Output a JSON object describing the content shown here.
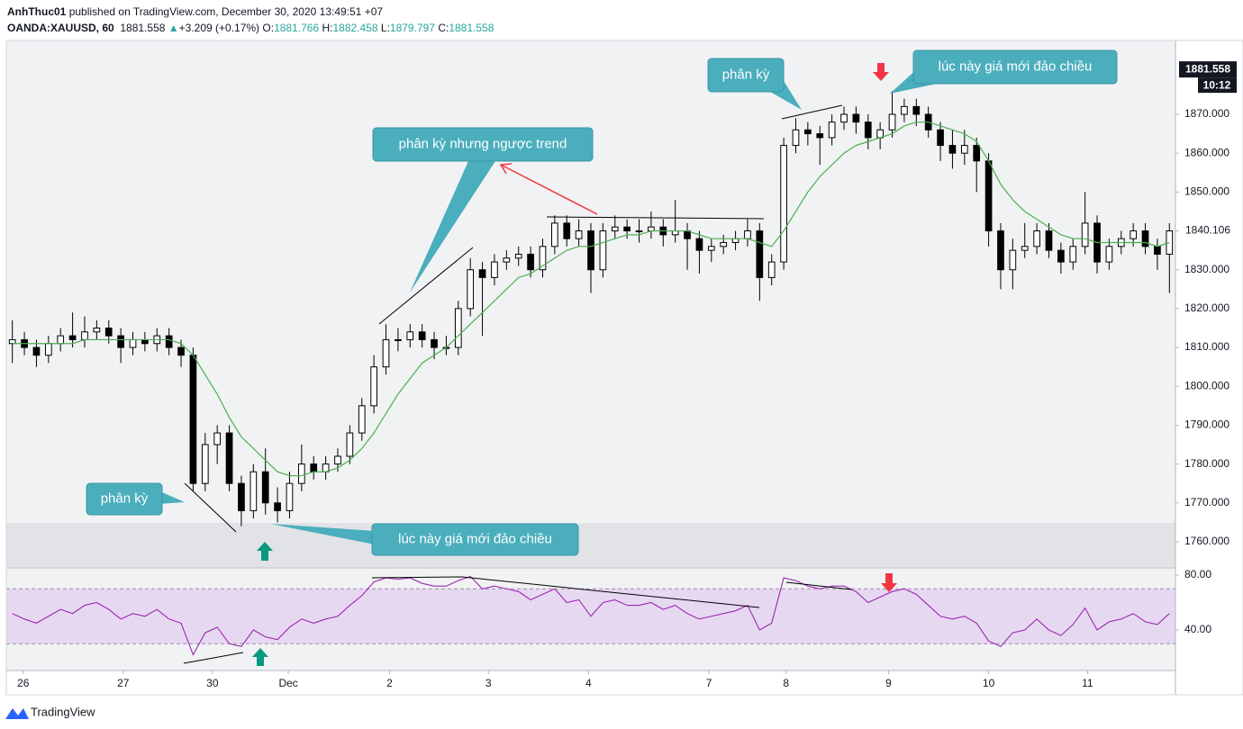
{
  "header": {
    "author": "AnhThuc01",
    "published": "published on TradingView.com, December 30, 2020 13:49:51 +07",
    "symbol": "OANDA:XAUUSD, 60",
    "price": "1881.558",
    "arrow": "▲",
    "change": "+3.209 (+0.17%)",
    "ohlc": [
      {
        "label": "O:",
        "value": "1881.766"
      },
      {
        "label": "H:",
        "value": "1882.458"
      },
      {
        "label": "L:",
        "value": "1879.797"
      },
      {
        "label": "C:",
        "value": "1881.558"
      }
    ]
  },
  "footer": {
    "brand": "TradingView"
  },
  "chart_data": [
    {
      "type": "candlestick",
      "up_color": "#ffffff",
      "down_color": "#000000",
      "wick_color": "#000000",
      "ma_color": "#4caf50",
      "xlim": [
        -0.5,
        96.5
      ],
      "xticks": [
        {
          "value": 0.9,
          "label": "26"
        },
        {
          "value": 9.2,
          "label": "27"
        },
        {
          "value": 16.6,
          "label": "30"
        },
        {
          "value": 22.9,
          "label": "Dec"
        },
        {
          "value": 31.3,
          "label": "2"
        },
        {
          "value": 39.5,
          "label": "3"
        },
        {
          "value": 47.8,
          "label": "4"
        },
        {
          "value": 57.8,
          "label": "7"
        },
        {
          "value": 64.2,
          "label": "8"
        },
        {
          "value": 72.7,
          "label": "9"
        },
        {
          "value": 81,
          "label": "10"
        },
        {
          "value": 89.2,
          "label": "11"
        }
      ],
      "ylim": [
        1753.5,
        1889
      ],
      "yticks": [
        {
          "value": 1760,
          "label": "1760.000"
        },
        {
          "value": 1770,
          "label": "1770.000"
        },
        {
          "value": 1780,
          "label": "1780.000"
        },
        {
          "value": 1790,
          "label": "1790.000"
        },
        {
          "value": 1800,
          "label": "1800.000"
        },
        {
          "value": 1810,
          "label": "1810.000"
        },
        {
          "value": 1820,
          "label": "1820.000"
        },
        {
          "value": 1830,
          "label": "1830.000"
        },
        {
          "value": 1840,
          "label": "1840.000"
        },
        {
          "value": 1850,
          "label": "1850.000"
        },
        {
          "value": 1860,
          "label": "1860.000"
        },
        {
          "value": 1870,
          "label": "1870.000"
        }
      ],
      "open": [
        1811,
        1812,
        1810,
        1808,
        1811,
        1813,
        1812,
        1814,
        1815,
        1813,
        1810,
        1812,
        1811,
        1813,
        1810,
        1808,
        1775,
        1785,
        1788,
        1775,
        1768,
        1778,
        1770,
        1768,
        1775,
        1780,
        1778,
        1780,
        1782,
        1788,
        1795,
        1805,
        1812,
        1812,
        1814,
        1812,
        1810,
        1810,
        1820,
        1830,
        1828,
        1832,
        1833,
        1834,
        1830,
        1836,
        1842,
        1838,
        1840,
        1830,
        1840,
        1841,
        1840,
        1840,
        1841,
        1839,
        1840,
        1838,
        1835,
        1836,
        1837,
        1838,
        1840,
        1828,
        1832,
        1862,
        1866,
        1865,
        1864,
        1868,
        1870,
        1868,
        1864,
        1866,
        1870,
        1872,
        1870,
        1866,
        1862,
        1860,
        1862,
        1858,
        1840,
        1830,
        1835,
        1836,
        1840,
        1835,
        1832,
        1836,
        1842,
        1832,
        1836,
        1838,
        1840,
        1836,
        1834
      ],
      "high": [
        1817,
        1814,
        1812,
        1813,
        1815,
        1819,
        1818,
        1817,
        1817,
        1815,
        1814,
        1814,
        1815,
        1815,
        1812,
        1810,
        1788,
        1790,
        1790,
        1777,
        1780,
        1784,
        1774,
        1778,
        1785,
        1782,
        1782,
        1784,
        1790,
        1797,
        1808,
        1816,
        1815,
        1816,
        1816,
        1814,
        1813,
        1822,
        1833,
        1832,
        1834,
        1835,
        1836,
        1836,
        1838,
        1844,
        1844,
        1843,
        1842,
        1842,
        1844,
        1843,
        1843,
        1845,
        1843,
        1848,
        1842,
        1840,
        1838,
        1839,
        1840,
        1843,
        1842,
        1834,
        1864,
        1869,
        1868,
        1867,
        1870,
        1872,
        1872,
        1870,
        1868,
        1876,
        1874,
        1874,
        1872,
        1868,
        1866,
        1866,
        1864,
        1860,
        1842,
        1838,
        1842,
        1842,
        1842,
        1837,
        1838,
        1850,
        1844,
        1838,
        1840,
        1842,
        1842,
        1838,
        1842
      ],
      "low": [
        1806,
        1808,
        1805,
        1806,
        1809,
        1810,
        1810,
        1812,
        1811,
        1806,
        1808,
        1809,
        1809,
        1808,
        1805,
        1773,
        1773,
        1780,
        1773,
        1764,
        1766,
        1767,
        1765,
        1766,
        1773,
        1776,
        1776,
        1778,
        1780,
        1786,
        1793,
        1803,
        1809,
        1810,
        1810,
        1807,
        1808,
        1808,
        1818,
        1813,
        1826,
        1830,
        1831,
        1828,
        1828,
        1834,
        1836,
        1836,
        1824,
        1828,
        1838,
        1838,
        1837,
        1838,
        1836,
        1837,
        1830,
        1829,
        1832,
        1834,
        1835,
        1836,
        1822,
        1826,
        1830,
        1860,
        1862,
        1857,
        1862,
        1866,
        1865,
        1861,
        1861,
        1864,
        1868,
        1867,
        1864,
        1858,
        1856,
        1857,
        1850,
        1836,
        1825,
        1825,
        1833,
        1834,
        1833,
        1829,
        1830,
        1834,
        1829,
        1830,
        1834,
        1836,
        1834,
        1830,
        1824
      ],
      "close": [
        1812,
        1810,
        1808,
        1811,
        1813,
        1812,
        1814,
        1815,
        1813,
        1810,
        1812,
        1811,
        1813,
        1810,
        1808,
        1775,
        1785,
        1788,
        1775,
        1768,
        1778,
        1770,
        1768,
        1775,
        1780,
        1778,
        1780,
        1782,
        1788,
        1795,
        1805,
        1812,
        1812,
        1814,
        1812,
        1810,
        1810,
        1820,
        1830,
        1828,
        1832,
        1833,
        1834,
        1830,
        1836,
        1842,
        1838,
        1840,
        1830,
        1840,
        1841,
        1840,
        1840,
        1841,
        1839,
        1840,
        1838,
        1835,
        1836,
        1837,
        1838,
        1840,
        1828,
        1832,
        1862,
        1866,
        1865,
        1864,
        1868,
        1870,
        1868,
        1864,
        1866,
        1870,
        1872,
        1870,
        1866,
        1862,
        1860,
        1862,
        1858,
        1840,
        1830,
        1835,
        1836,
        1840,
        1835,
        1832,
        1836,
        1842,
        1832,
        1836,
        1838,
        1840,
        1836,
        1834,
        1840
      ],
      "ma": [
        1811,
        1811,
        1811,
        1811,
        1811,
        1811,
        1812,
        1812,
        1812,
        1812,
        1812,
        1812,
        1812,
        1812,
        1811,
        1808,
        1803,
        1798,
        1792,
        1787,
        1784,
        1781,
        1778,
        1777,
        1777,
        1778,
        1778,
        1779,
        1781,
        1784,
        1788,
        1793,
        1798,
        1802,
        1806,
        1808,
        1810,
        1813,
        1816,
        1819,
        1822,
        1825,
        1828,
        1829,
        1831,
        1833,
        1835,
        1836,
        1836,
        1837,
        1838,
        1839,
        1839,
        1840,
        1840,
        1840,
        1840,
        1839,
        1838,
        1838,
        1838,
        1838,
        1837,
        1836,
        1840,
        1845,
        1850,
        1854,
        1857,
        1860,
        1862,
        1863,
        1864,
        1865,
        1867,
        1868,
        1868,
        1867,
        1866,
        1865,
        1863,
        1858,
        1852,
        1848,
        1845,
        1843,
        1841,
        1839,
        1838,
        1838,
        1837,
        1837,
        1837,
        1837,
        1837,
        1836,
        1837
      ],
      "symbol_price": {
        "value": 1881.558,
        "label": "1881.558",
        "countdown": "10:12"
      },
      "last_price": {
        "value": 1840.106,
        "label": "1840.106"
      },
      "annotations": [
        {
          "text": "phân kỳ"
        },
        {
          "text": "lúc này giá mới đảo chiều"
        },
        {
          "text": "phân kỳ nhưng ngược trend"
        },
        {
          "text": "phân kỳ"
        },
        {
          "text": "lúc này giá mới đảo chiều"
        }
      ]
    },
    {
      "type": "line",
      "color": "#9c27b0",
      "band_color": "#e7d8f2",
      "xlim": [
        -0.5,
        96.5
      ],
      "ylim": [
        10.5,
        84.6
      ],
      "yticks": [
        {
          "value": 40,
          "label": "40.00"
        },
        {
          "value": 80,
          "label": "80.00"
        }
      ],
      "bands": [
        30,
        70
      ],
      "values": [
        52,
        48,
        45,
        50,
        55,
        52,
        58,
        60,
        55,
        48,
        52,
        50,
        55,
        48,
        45,
        22,
        38,
        42,
        30,
        28,
        40,
        35,
        33,
        42,
        48,
        45,
        48,
        50,
        58,
        65,
        75,
        78,
        77,
        78,
        74,
        72,
        72,
        76,
        79,
        70,
        72,
        70,
        68,
        62,
        66,
        70,
        60,
        62,
        50,
        60,
        62,
        58,
        58,
        60,
        55,
        58,
        52,
        48,
        50,
        52,
        54,
        58,
        40,
        45,
        78,
        76,
        72,
        70,
        72,
        72,
        68,
        60,
        64,
        68,
        70,
        66,
        58,
        50,
        48,
        50,
        45,
        32,
        28,
        38,
        40,
        48,
        40,
        36,
        44,
        56,
        40,
        46,
        48,
        52,
        46,
        44,
        52
      ]
    }
  ]
}
